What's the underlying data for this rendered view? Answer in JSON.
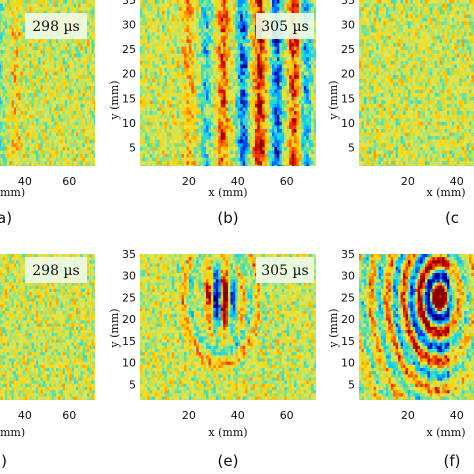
{
  "chart_data": [
    {
      "type": "heatmap",
      "panel": "(a)",
      "time_label": "298 µs",
      "xlabel": "x (mm)",
      "ylabel": "",
      "xlim": [
        0,
        72
      ],
      "ylim": [
        0,
        35
      ],
      "x_ticks": [
        40,
        60
      ],
      "y_ticks": [],
      "pattern": "vertical-stripes",
      "dominant_stripe_x_mm": [
        6,
        14,
        21,
        28,
        36
      ],
      "stripe_amplitude": [
        0.9,
        0.75,
        0.45,
        0.35,
        0.25
      ]
    },
    {
      "type": "heatmap",
      "panel": "(b)",
      "time_label": "305 µs",
      "xlabel": "x (mm)",
      "ylabel": "y (mm)",
      "xlim": [
        0,
        72
      ],
      "ylim": [
        0,
        35
      ],
      "x_ticks": [
        20,
        40,
        60
      ],
      "y_ticks": [
        5,
        10,
        15,
        20,
        25,
        30,
        35
      ],
      "pattern": "vertical-stripes",
      "dominant_stripe_x_mm": [
        20,
        27,
        34,
        42,
        49,
        56,
        63,
        68
      ],
      "stripe_amplitude": [
        0.35,
        0.5,
        0.65,
        0.9,
        1.0,
        0.9,
        0.75,
        0.6
      ]
    },
    {
      "type": "heatmap",
      "panel": "(c)",
      "time_label": "",
      "xlabel": "x (mm)",
      "ylabel": "y (mm)",
      "xlim": [
        0,
        72
      ],
      "ylim": [
        0,
        35
      ],
      "x_ticks": [
        20,
        40
      ],
      "y_ticks": [
        5,
        10,
        15,
        20,
        25,
        30,
        35
      ],
      "pattern": "noise",
      "dominant_stripe_x_mm": [],
      "stripe_amplitude": []
    },
    {
      "type": "heatmap",
      "panel": "(d)",
      "time_label": "298 µs",
      "xlabel": "x (mm)",
      "ylabel": "",
      "xlim": [
        0,
        72
      ],
      "ylim": [
        0,
        35
      ],
      "x_ticks": [
        40,
        60
      ],
      "y_ticks": [],
      "pattern": "noise-with-edge-spot",
      "spot_center_mm": [
        6,
        25
      ],
      "spot_amplitude": 0.6
    },
    {
      "type": "heatmap",
      "panel": "(e)",
      "time_label": "305 µs",
      "xlabel": "x (mm)",
      "ylabel": "y (mm)",
      "xlim": [
        0,
        72
      ],
      "ylim": [
        0,
        35
      ],
      "x_ticks": [
        20,
        40,
        60
      ],
      "y_ticks": [
        5,
        10,
        15,
        20,
        25,
        30,
        35
      ],
      "pattern": "dipole-spot",
      "spot_center_mm": [
        33,
        25
      ],
      "spot_amplitude": 1.0
    },
    {
      "type": "heatmap",
      "panel": "(f)",
      "time_label": "",
      "xlabel": "x (mm)",
      "ylabel": "y (mm)",
      "xlim": [
        0,
        72
      ],
      "ylim": [
        0,
        35
      ],
      "x_ticks": [
        20,
        40
      ],
      "y_ticks": [
        5,
        10,
        15,
        20,
        25,
        30,
        35
      ],
      "pattern": "circular-wavefronts",
      "spot_center_mm": [
        33,
        25
      ],
      "spot_amplitude": 1.0
    }
  ],
  "colormap": [
    "#00008f",
    "#0050ff",
    "#00d0ff",
    "#60e0a0",
    "#dde85a",
    "#ffd000",
    "#ff6000",
    "#d00000",
    "#800000"
  ]
}
